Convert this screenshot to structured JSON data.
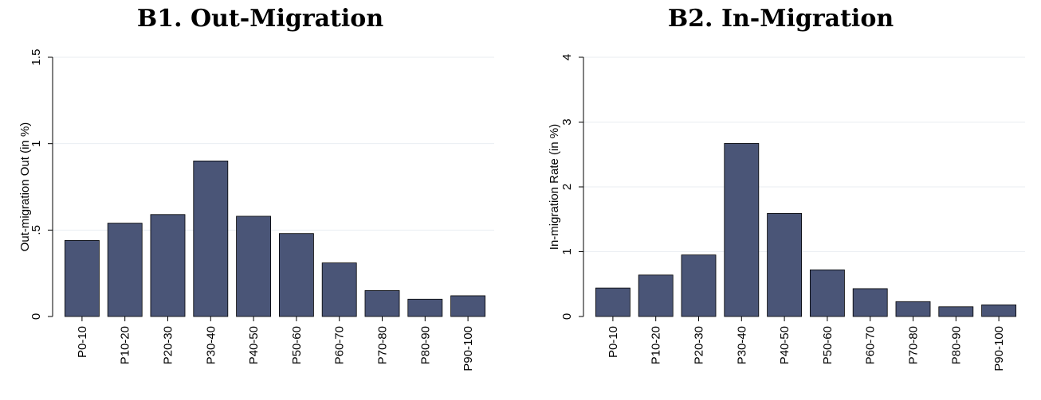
{
  "panels": {
    "left_title": "B1. Out-Migration",
    "right_title": "B2. In-Migration"
  },
  "colors": {
    "bar": "#4a5577",
    "bar_stroke": "#000000",
    "grid": "#eaeef2"
  },
  "chart_data": [
    {
      "type": "bar",
      "title": "B1. Out-Migration",
      "xlabel": "",
      "ylabel": "Out-migration Out (in %)",
      "categories": [
        "P0-10",
        "P10-20",
        "P20-30",
        "P30-40",
        "P40-50",
        "P50-60",
        "P60-70",
        "P70-80",
        "P80-90",
        "P90-100"
      ],
      "values": [
        0.44,
        0.54,
        0.59,
        0.9,
        0.58,
        0.48,
        0.31,
        0.15,
        0.1,
        0.12
      ],
      "ylim": [
        0,
        1.5
      ],
      "yticks": [
        0,
        0.5,
        1,
        1.5
      ],
      "ytick_labels": [
        "0",
        ".5",
        "1",
        "1.5"
      ],
      "grid": true
    },
    {
      "type": "bar",
      "title": "B2. In-Migration",
      "xlabel": "",
      "ylabel": "In-migration Rate (in %)",
      "categories": [
        "P0-10",
        "P10-20",
        "P20-30",
        "P30-40",
        "P40-50",
        "P50-60",
        "P60-70",
        "P70-80",
        "P80-90",
        "P90-100"
      ],
      "values": [
        0.44,
        0.64,
        0.95,
        2.67,
        1.59,
        0.72,
        0.43,
        0.23,
        0.15,
        0.18
      ],
      "ylim": [
        0,
        4
      ],
      "yticks": [
        0,
        1,
        2,
        3,
        4
      ],
      "ytick_labels": [
        "0",
        "1",
        "2",
        "3",
        "4"
      ],
      "grid": true
    }
  ]
}
